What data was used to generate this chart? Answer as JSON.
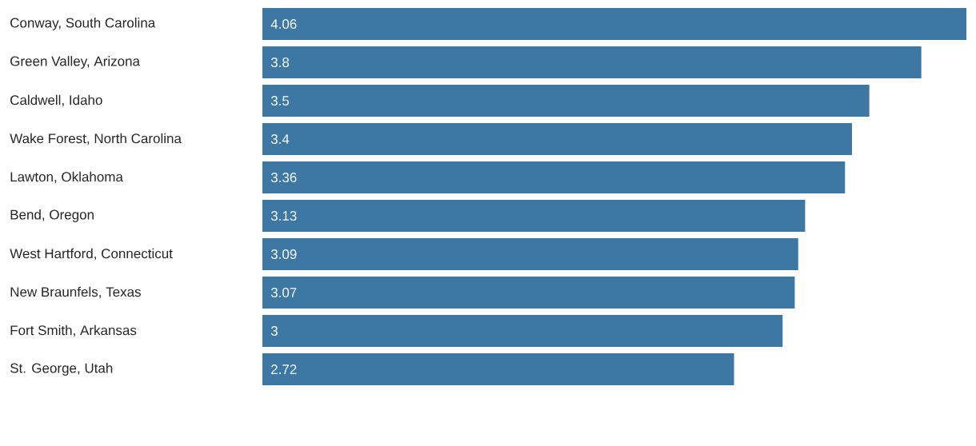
{
  "chart_data": {
    "type": "bar",
    "orientation": "horizontal",
    "categories": [
      "Conway, South Carolina",
      "Green Valley, Arizona",
      "Caldwell, Idaho",
      "Wake Forest, North Carolina",
      "Lawton, Oklahoma",
      "Bend, Oregon",
      "West Hartford, Connecticut",
      "New Braunfels, Texas",
      "Fort Smith, Arkansas",
      "St. George, Utah"
    ],
    "values": [
      4.06,
      3.8,
      3.5,
      3.4,
      3.36,
      3.13,
      3.09,
      3.07,
      3,
      2.72
    ],
    "color": "#3d77a3",
    "data_labels": true
  }
}
